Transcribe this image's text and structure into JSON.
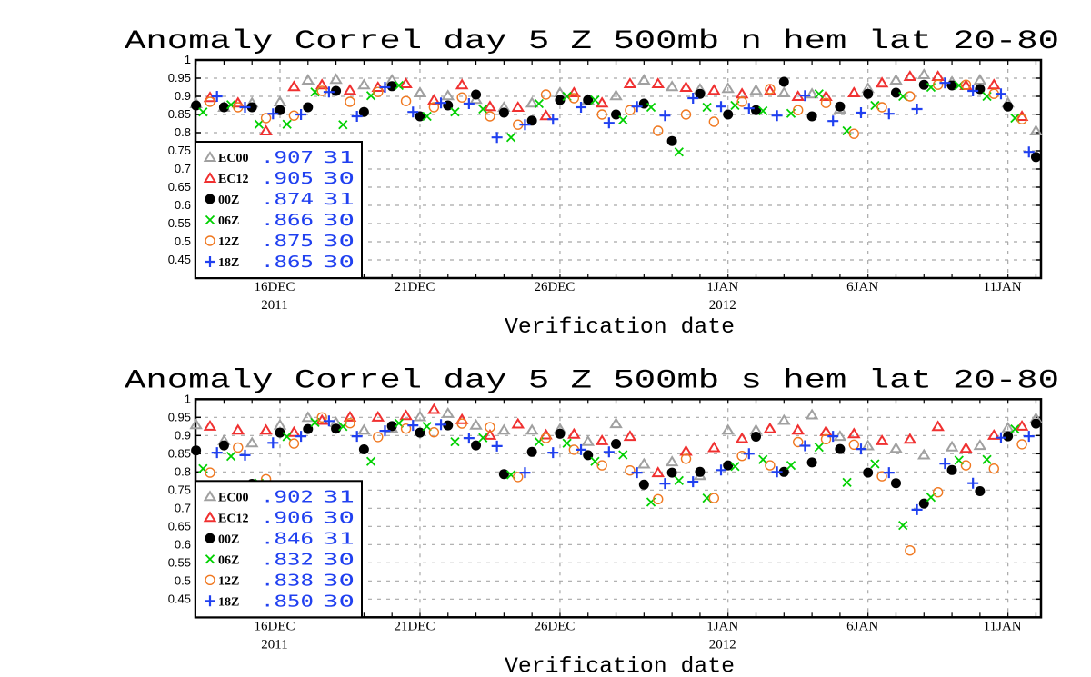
{
  "colors": {
    "EC00": "#a0a0a0",
    "EC12": "#f03030",
    "00Z": "#000000",
    "06Z": "#00d000",
    "12Z": "#f07820",
    "18Z": "#2040f0",
    "legend_text": "#2040f0",
    "grid": "#a8a8a8"
  },
  "chart_data": [
    {
      "type": "scatter",
      "title": "Anomaly Correl  day 5  Z 500mb  n hem  lat 20-80",
      "xlabel": "Verification date",
      "ylabel": "",
      "ylim": [
        0.4,
        1.0
      ],
      "yticks": [
        "1",
        "0.95",
        "0.9",
        "0.85",
        "0.8",
        "0.75",
        "0.7",
        "0.65",
        "0.6",
        "0.55",
        "0.5",
        "0.45"
      ],
      "xlim_days_from_16dec2011": [
        -3.02,
        27.18
      ],
      "xticks": [
        {
          "day": 0,
          "label": "16DEC",
          "sub": "2011"
        },
        {
          "day": 5,
          "label": "21DEC",
          "sub": ""
        },
        {
          "day": 10,
          "label": "26DEC",
          "sub": ""
        },
        {
          "day": 16,
          "label": "1JAN",
          "sub": "2012"
        },
        {
          "day": 21,
          "label": "6JAN",
          "sub": ""
        },
        {
          "day": 26,
          "label": "11JAN",
          "sub": ""
        }
      ],
      "grid": true,
      "legend_position": "bottom-left",
      "first_day": -3,
      "series": [
        {
          "name": "EC00",
          "marker": "triangle",
          "hour": 0,
          "mean": ".907",
          "count": "31",
          "values": [
            0.88,
            0.87,
            0.882,
            0.885,
            0.945,
            0.947,
            0.932,
            0.945,
            0.91,
            0.902,
            0.892,
            0.87,
            0.882,
            0.91,
            0.89,
            0.902,
            0.945,
            0.927,
            0.92,
            0.922,
            0.917,
            0.91,
            0.907,
            0.865,
            0.922,
            0.945,
            0.96,
            0.94,
            0.945,
            0.882,
            0.805
          ]
        },
        {
          "name": "EC12",
          "marker": "triangle",
          "hour": 12,
          "mean": ".905",
          "count": "30",
          "values": [
            0.897,
            0.882,
            0.805,
            0.927,
            0.932,
            0.917,
            0.925,
            0.935,
            0.89,
            0.932,
            0.872,
            0.87,
            0.847,
            0.91,
            0.882,
            0.935,
            0.935,
            0.925,
            0.917,
            0.907,
            0.915,
            0.9,
            0.9,
            0.91,
            0.937,
            0.955,
            0.955,
            0.93,
            0.932,
            0.845,
            null
          ]
        },
        {
          "name": "00Z",
          "marker": "dot",
          "hour": 0,
          "mean": ".874",
          "count": "31",
          "values": [
            0.875,
            0.87,
            0.87,
            0.862,
            0.87,
            0.915,
            0.857,
            0.928,
            0.845,
            0.875,
            0.905,
            0.855,
            0.833,
            0.89,
            0.89,
            0.85,
            0.88,
            0.777,
            0.907,
            0.85,
            0.862,
            0.94,
            0.845,
            0.872,
            0.907,
            0.91,
            0.932,
            0.93,
            0.92,
            0.872,
            0.733
          ]
        },
        {
          "name": "06Z",
          "marker": "x",
          "hour": 6,
          "mean": ".866",
          "count": "30",
          "values": [
            0.857,
            0.877,
            0.823,
            0.823,
            0.912,
            0.822,
            0.902,
            0.93,
            0.845,
            0.857,
            0.865,
            0.787,
            0.88,
            0.9,
            0.89,
            0.835,
            0.87,
            0.747,
            0.87,
            0.875,
            0.86,
            0.853,
            0.907,
            0.805,
            0.875,
            0.9,
            0.925,
            0.93,
            0.9,
            0.84,
            null
          ]
        },
        {
          "name": "12Z",
          "marker": "circle",
          "hour": 12,
          "mean": ".875",
          "count": "30",
          "values": [
            0.885,
            0.87,
            0.84,
            0.847,
            0.915,
            0.885,
            0.912,
            0.887,
            0.87,
            0.897,
            0.845,
            0.822,
            0.905,
            0.895,
            0.85,
            0.862,
            0.805,
            0.85,
            0.83,
            0.885,
            0.92,
            0.862,
            0.882,
            0.797,
            0.87,
            0.9,
            0.932,
            0.932,
            0.907,
            0.837,
            null
          ]
        },
        {
          "name": "18Z",
          "marker": "plus",
          "hour": 18,
          "mean": ".865",
          "count": "30",
          "values": [
            0.9,
            0.87,
            0.852,
            0.85,
            0.912,
            0.845,
            0.925,
            0.857,
            0.882,
            0.88,
            0.787,
            0.822,
            0.837,
            0.87,
            0.827,
            0.872,
            0.847,
            0.895,
            0.872,
            0.867,
            0.847,
            0.902,
            0.832,
            0.855,
            0.852,
            0.865,
            0.937,
            0.915,
            0.907,
            0.747,
            null
          ]
        }
      ]
    },
    {
      "type": "scatter",
      "title": "Anomaly Correl  day 5  Z 500mb  s hem  lat 20-80",
      "xlabel": "Verification date",
      "ylabel": "",
      "ylim": [
        0.4,
        1.0
      ],
      "yticks": [
        "1",
        "0.95",
        "0.9",
        "0.85",
        "0.8",
        "0.75",
        "0.7",
        "0.65",
        "0.6",
        "0.55",
        "0.5",
        "0.45"
      ],
      "xlim_days_from_16dec2011": [
        -3.02,
        27.18
      ],
      "xticks": [
        {
          "day": 0,
          "label": "16DEC",
          "sub": "2011"
        },
        {
          "day": 5,
          "label": "21DEC",
          "sub": ""
        },
        {
          "day": 10,
          "label": "26DEC",
          "sub": ""
        },
        {
          "day": 16,
          "label": "1JAN",
          "sub": "2012"
        },
        {
          "day": 21,
          "label": "6JAN",
          "sub": ""
        },
        {
          "day": 26,
          "label": "11JAN",
          "sub": ""
        }
      ],
      "grid": true,
      "legend_position": "bottom-left",
      "first_day": -3,
      "series": [
        {
          "name": "EC00",
          "marker": "triangle",
          "hour": 0,
          "mean": ".902",
          "count": "31",
          "values": [
            0.93,
            0.886,
            0.88,
            0.929,
            0.95,
            0.936,
            0.915,
            0.92,
            0.952,
            0.961,
            0.929,
            0.915,
            0.915,
            0.918,
            0.884,
            0.933,
            0.822,
            0.828,
            0.79,
            0.915,
            0.915,
            0.942,
            0.957,
            0.898,
            0.872,
            0.865,
            0.847,
            0.869,
            0.873,
            0.921,
            0.947
          ]
        },
        {
          "name": "EC12",
          "marker": "triangle",
          "hour": 12,
          "mean": ".906",
          "count": "30",
          "values": [
            0.926,
            0.915,
            0.915,
            0.909,
            0.942,
            0.951,
            0.951,
            0.955,
            0.972,
            0.944,
            0.901,
            0.932,
            0.902,
            0.904,
            0.886,
            0.898,
            0.798,
            0.857,
            0.867,
            0.892,
            0.919,
            0.915,
            0.911,
            0.905,
            0.886,
            0.89,
            0.925,
            0.865,
            0.901,
            0.926,
            null
          ]
        },
        {
          "name": "00Z",
          "marker": "dot",
          "hour": 0,
          "mean": ".846",
          "count": "31",
          "values": [
            0.859,
            0.873,
            0.767,
            0.908,
            0.918,
            0.919,
            0.862,
            0.926,
            0.908,
            0.928,
            0.873,
            0.794,
            0.855,
            0.905,
            0.846,
            0.877,
            0.765,
            0.798,
            0.8,
            0.818,
            0.897,
            0.8,
            0.826,
            0.863,
            0.798,
            0.769,
            0.713,
            0.805,
            0.747,
            0.898,
            0.933
          ]
        },
        {
          "name": "06Z",
          "marker": "x",
          "hour": 6,
          "mean": ".832",
          "count": "30",
          "values": [
            0.809,
            0.843,
            0.769,
            0.897,
            0.936,
            0.925,
            0.829,
            0.934,
            0.925,
            0.883,
            0.894,
            0.792,
            0.883,
            0.879,
            0.829,
            0.847,
            0.717,
            0.776,
            0.728,
            0.815,
            0.834,
            0.818,
            0.868,
            0.771,
            0.822,
            0.653,
            0.73,
            0.832,
            0.834,
            0.918,
            null
          ]
        },
        {
          "name": "12Z",
          "marker": "circle",
          "hour": 12,
          "mean": ".838",
          "count": "30",
          "values": [
            0.798,
            0.867,
            0.78,
            0.878,
            0.95,
            0.934,
            0.896,
            0.919,
            0.909,
            0.933,
            0.923,
            0.786,
            0.893,
            0.861,
            0.818,
            0.804,
            0.725,
            0.836,
            0.728,
            0.844,
            0.818,
            0.882,
            0.89,
            0.875,
            0.788,
            0.584,
            0.744,
            0.818,
            0.809,
            0.876,
            null
          ]
        },
        {
          "name": "18Z",
          "marker": "plus",
          "hour": 18,
          "mean": ".850",
          "count": "30",
          "values": [
            0.853,
            0.846,
            0.88,
            0.898,
            0.94,
            0.898,
            0.913,
            0.928,
            0.93,
            0.893,
            0.871,
            0.798,
            0.853,
            0.861,
            0.855,
            0.798,
            0.768,
            0.773,
            0.805,
            0.85,
            0.8,
            0.872,
            0.898,
            0.863,
            0.798,
            0.696,
            0.823,
            0.769,
            0.894,
            0.898,
            null
          ]
        }
      ]
    }
  ]
}
